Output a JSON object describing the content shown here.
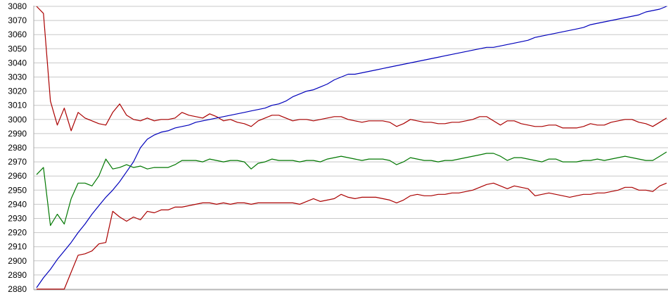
{
  "chart_data": {
    "type": "line",
    "title": "",
    "xlabel": "",
    "ylabel": "",
    "legend": "none",
    "grid": "horizontal",
    "background_color": "#ffffff",
    "gridline_color": "#c8c8c8",
    "axis_color": "#a8a8a8",
    "label_color": "#000000",
    "y_axis": {
      "min": 2880,
      "max": 3080,
      "step": 10,
      "tick_labels": [
        "3080",
        "3070",
        "3060",
        "3050",
        "3040",
        "3030",
        "3020",
        "3010",
        "3000",
        "2990",
        "2980",
        "2970",
        "2960",
        "2950",
        "2940",
        "2930",
        "2920",
        "2910",
        "2900",
        "2890",
        "2880"
      ]
    },
    "x_axis": {
      "tick_labels": [],
      "points": 92
    },
    "series": [
      {
        "name": "upper-red-line",
        "color": "#aa0000",
        "values": [
          3080,
          3075,
          3013,
          2996,
          3008,
          2992,
          3005,
          3001,
          2999,
          2997,
          2996,
          3005,
          3011,
          3003,
          3000,
          2999,
          3001,
          2999,
          3000,
          3000,
          3001,
          3005,
          3003,
          3002,
          3001,
          3004,
          3002,
          2999,
          3000,
          2998,
          2997,
          2995,
          2999,
          3001,
          3003,
          3003,
          3001,
          2999,
          3000,
          3000,
          2999,
          3000,
          3001,
          3002,
          3002,
          3000,
          2999,
          2998,
          2999,
          2999,
          2999,
          2998,
          2995,
          2997,
          3000,
          2999,
          2998,
          2998,
          2997,
          2997,
          2998,
          2998,
          2999,
          3000,
          3002,
          3002,
          2999,
          2996,
          2999,
          2999,
          2997,
          2996,
          2995,
          2995,
          2996,
          2996,
          2994,
          2994,
          2994,
          2995,
          2997,
          2996,
          2996,
          2998,
          2999,
          3000,
          3000,
          2998,
          2997,
          2995,
          2998,
          3001
        ]
      },
      {
        "name": "blue-rising-line",
        "color": "#0000bb",
        "values": [
          2881,
          2888,
          2894,
          2901,
          2907,
          2913,
          2920,
          2926,
          2933,
          2939,
          2945,
          2950,
          2956,
          2963,
          2970,
          2980,
          2986,
          2989,
          2991,
          2992,
          2994,
          2995,
          2996,
          2998,
          2999,
          3000,
          3001,
          3002,
          3003,
          3004,
          3005,
          3006,
          3007,
          3008,
          3010,
          3011,
          3013,
          3016,
          3018,
          3020,
          3021,
          3023,
          3025,
          3028,
          3030,
          3032,
          3032,
          3033,
          3034,
          3035,
          3036,
          3037,
          3038,
          3039,
          3040,
          3041,
          3042,
          3043,
          3044,
          3045,
          3046,
          3047,
          3048,
          3049,
          3050,
          3051,
          3051,
          3052,
          3053,
          3054,
          3055,
          3056,
          3058,
          3059,
          3060,
          3061,
          3062,
          3063,
          3064,
          3065,
          3067,
          3068,
          3069,
          3070,
          3071,
          3072,
          3073,
          3074,
          3076,
          3077,
          3078,
          3080
        ]
      },
      {
        "name": "green-line",
        "color": "#007700",
        "values": [
          2961,
          2966,
          2925,
          2933,
          2926,
          2944,
          2955,
          2955,
          2953,
          2960,
          2972,
          2965,
          2966,
          2968,
          2966,
          2967,
          2965,
          2966,
          2966,
          2966,
          2968,
          2971,
          2971,
          2971,
          2970,
          2972,
          2971,
          2970,
          2971,
          2971,
          2970,
          2965,
          2969,
          2970,
          2972,
          2971,
          2971,
          2971,
          2970,
          2971,
          2971,
          2970,
          2972,
          2973,
          2974,
          2973,
          2972,
          2971,
          2972,
          2972,
          2972,
          2971,
          2968,
          2970,
          2973,
          2972,
          2971,
          2971,
          2970,
          2971,
          2971,
          2972,
          2973,
          2974,
          2975,
          2976,
          2976,
          2974,
          2971,
          2973,
          2973,
          2972,
          2971,
          2970,
          2972,
          2972,
          2970,
          2970,
          2970,
          2971,
          2971,
          2972,
          2971,
          2972,
          2973,
          2974,
          2973,
          2972,
          2971,
          2971,
          2974,
          2977
        ]
      },
      {
        "name": "lower-red-line",
        "color": "#aa0000",
        "values": [
          2880,
          2880,
          2880,
          2880,
          2880,
          2892,
          2904,
          2905,
          2907,
          2912,
          2913,
          2935,
          2931,
          2928,
          2931,
          2929,
          2935,
          2934,
          2936,
          2936,
          2938,
          2938,
          2939,
          2940,
          2941,
          2941,
          2940,
          2941,
          2940,
          2941,
          2941,
          2940,
          2941,
          2941,
          2941,
          2941,
          2941,
          2941,
          2940,
          2942,
          2944,
          2942,
          2943,
          2944,
          2947,
          2945,
          2944,
          2945,
          2945,
          2945,
          2944,
          2943,
          2941,
          2943,
          2946,
          2947,
          2946,
          2946,
          2947,
          2947,
          2948,
          2948,
          2949,
          2950,
          2952,
          2954,
          2955,
          2953,
          2951,
          2953,
          2952,
          2951,
          2946,
          2947,
          2948,
          2947,
          2946,
          2945,
          2946,
          2947,
          2947,
          2948,
          2948,
          2949,
          2950,
          2952,
          2952,
          2950,
          2950,
          2949,
          2953,
          2955
        ]
      }
    ]
  }
}
